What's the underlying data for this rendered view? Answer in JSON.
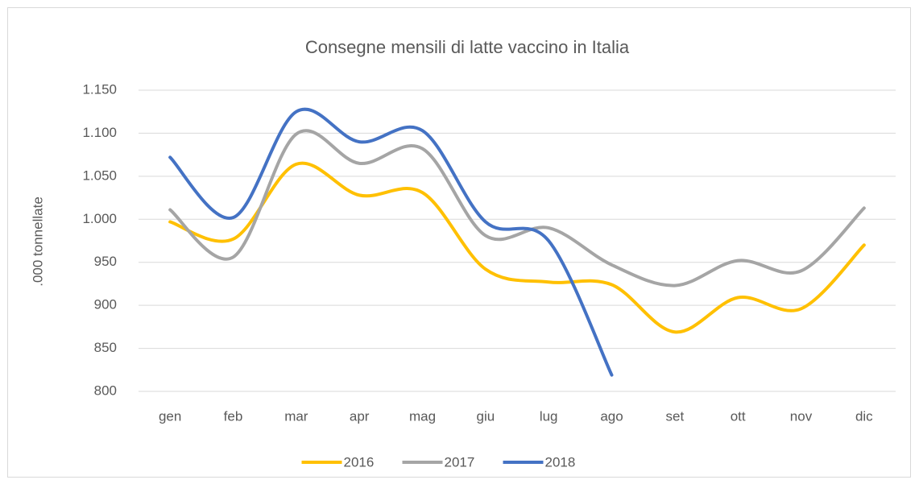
{
  "chart_data": {
    "type": "line",
    "title": "Consegne mensili di latte vaccino in Italia",
    "y_label": ".000 tonnellate",
    "categories": [
      "gen",
      "feb",
      "mar",
      "apr",
      "mag",
      "giu",
      "lug",
      "ago",
      "set",
      "ott",
      "nov",
      "dic"
    ],
    "series": [
      {
        "name": "2016",
        "color": "#ffc000",
        "values": [
          997,
          977,
          1064,
          1028,
          1031,
          942,
          927,
          924,
          869,
          909,
          896,
          970
        ]
      },
      {
        "name": "2017",
        "color": "#a5a5a5",
        "values": [
          1011,
          956,
          1099,
          1065,
          1082,
          981,
          990,
          947,
          923,
          952,
          940,
          1013
        ]
      },
      {
        "name": "2018",
        "color": "#4472c4",
        "values": [
          1072,
          1002,
          1125,
          1090,
          1103,
          997,
          975,
          819,
          null,
          null,
          null,
          null
        ]
      }
    ],
    "ylim": [
      800,
      1150
    ],
    "yticks": [
      800,
      850,
      900,
      950,
      {
        "value": 1000,
        "label": "1.000"
      },
      {
        "value": 1050,
        "label": "1.050"
      },
      {
        "value": 1100,
        "label": "1.100"
      },
      {
        "value": 1150,
        "label": "1.150"
      }
    ],
    "grid": true,
    "legend": "bottom"
  }
}
